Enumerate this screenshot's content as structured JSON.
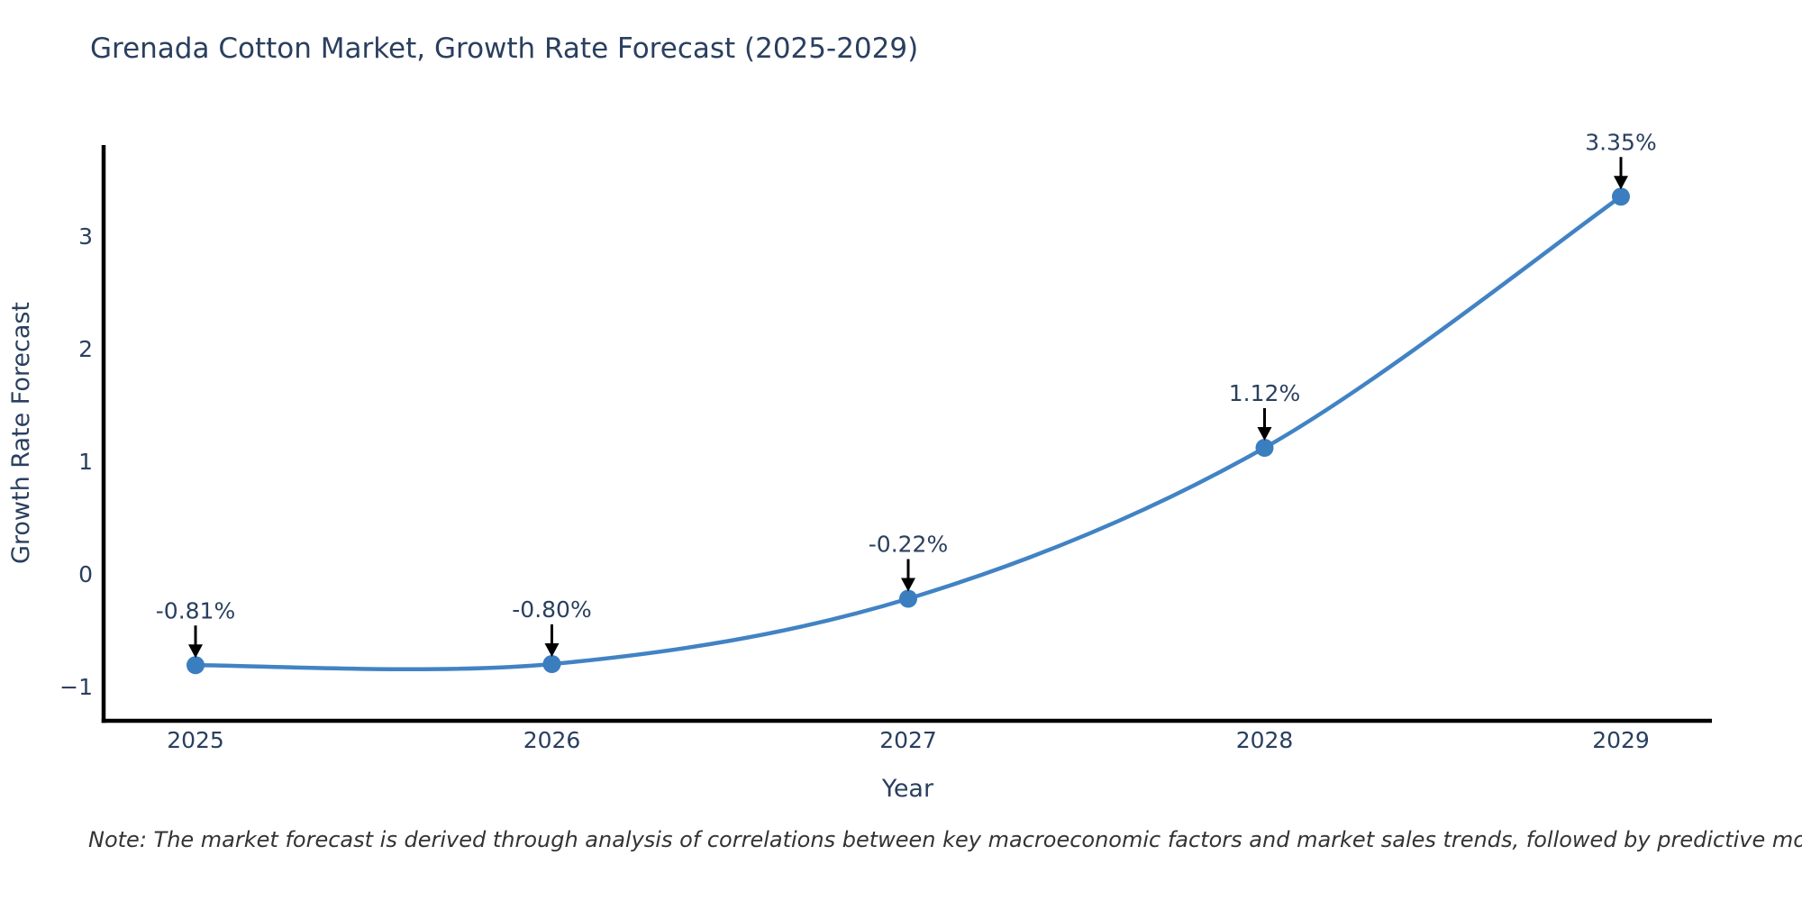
{
  "title": "Grenada Cotton Market, Growth Rate Forecast (2025-2029)",
  "note": "Note: The market forecast is derived through analysis of correlations between key macroeconomic factors and market sales trends, followed by predictive modeling to project future sales",
  "chart_data": {
    "type": "line",
    "line_shape": "spline",
    "title": "Grenada Cotton Market, Growth Rate Forecast (2025-2029)",
    "xlabel": "Year",
    "ylabel": "Growth Rate Forecast",
    "x": [
      2025,
      2026,
      2027,
      2028,
      2029
    ],
    "xtick_labels": [
      "2025",
      "2026",
      "2027",
      "2028",
      "2029"
    ],
    "values": [
      -0.81,
      -0.8,
      -0.22,
      1.12,
      3.35
    ],
    "point_labels": [
      "-0.81%",
      "-0.80%",
      "-0.22%",
      "1.12%",
      "3.35%"
    ],
    "yticks": [
      -1,
      0,
      1,
      2,
      3
    ],
    "ytick_labels": [
      "−1",
      "0",
      "1",
      "2",
      "3"
    ],
    "ylim": [
      -1.3,
      3.81
    ],
    "grid": false,
    "legend": "none",
    "colors": {
      "line": "#4183c4",
      "marker": "#3a7ebf",
      "axis": "#000000",
      "tick_text": "#2a3f5f",
      "axis_title_text": "#2a3f5f",
      "annotation_text": "#2a3f5f",
      "arrow": "#000000",
      "note_text": "#333333",
      "title_text": "#2a3f5f"
    }
  }
}
